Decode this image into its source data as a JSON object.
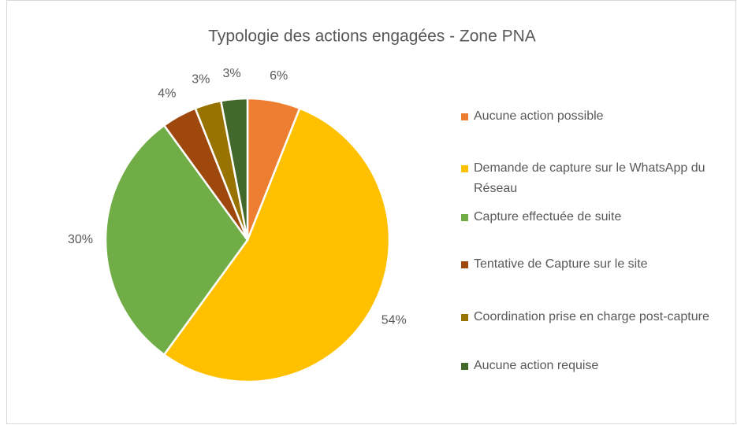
{
  "chart_data": {
    "type": "pie",
    "title": "Typologie des actions engagées - Zone PNA",
    "categories": [
      "Aucune action possible",
      "Demande de capture sur le WhatsApp du Réseau",
      "Capture effectuée de suite",
      "Tentative de Capture sur le site",
      "Coordination prise en charge post-capture",
      "Aucune action requise"
    ],
    "values": [
      6,
      54,
      30,
      4,
      3,
      3
    ],
    "value_labels": [
      "6%",
      "54%",
      "30%",
      "4%",
      "3%",
      "3%"
    ],
    "colors": [
      "#ed7d31",
      "#ffc000",
      "#70ad47",
      "#9e480e",
      "#997300",
      "#43682b"
    ],
    "legend": "right"
  }
}
